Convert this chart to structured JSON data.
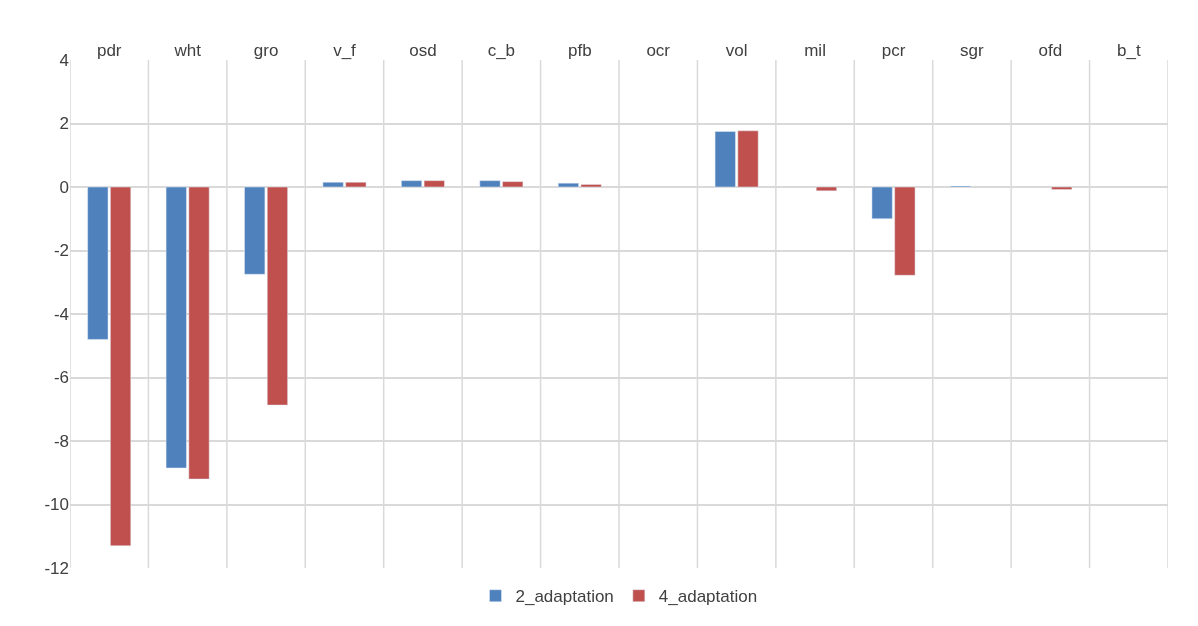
{
  "chart_data": {
    "type": "bar",
    "categories": [
      "pdr",
      "wht",
      "gro",
      "v_f",
      "osd",
      "c_b",
      "pfb",
      "ocr",
      "vol",
      "mil",
      "pcr",
      "sgr",
      "ofd",
      "b_t"
    ],
    "series": [
      {
        "name": "2_adaptation",
        "color": "#4f81bd",
        "values": [
          -4.8,
          -8.85,
          -2.75,
          0.15,
          0.2,
          0.2,
          0.12,
          null,
          1.75,
          null,
          -1.0,
          0.03,
          null,
          null
        ]
      },
      {
        "name": "4_adaptation",
        "color": "#c0504d",
        "values": [
          -11.3,
          -9.2,
          -6.87,
          0.15,
          0.2,
          0.17,
          0.08,
          null,
          1.77,
          -0.12,
          -2.78,
          null,
          -0.08,
          null
        ]
      }
    ],
    "ylim": [
      -12,
      4
    ],
    "yticks": [
      -12,
      -10,
      -8,
      -6,
      -4,
      -2,
      0,
      2,
      4
    ],
    "grid": true,
    "legend": "bottom"
  }
}
